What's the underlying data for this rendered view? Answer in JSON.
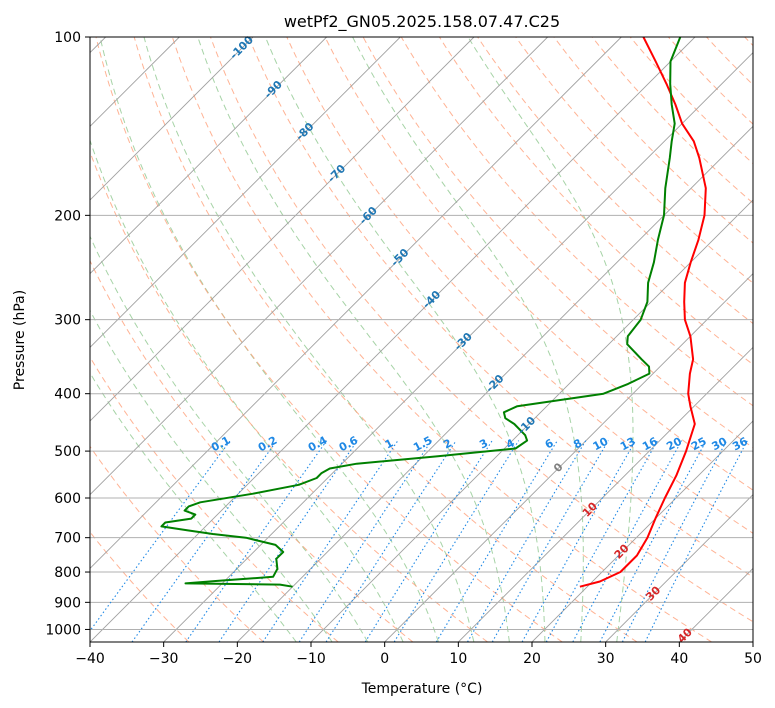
{
  "chart_data": {
    "type": "line",
    "title": "wetPf2_GN05.2025.158.07.47.C25",
    "xlabel": "Temperature (°C)",
    "ylabel": "Pressure (hPa)",
    "xlim": [
      -40,
      50
    ],
    "ylim": [
      1050,
      100
    ],
    "y_scale": "log",
    "x_ticks": [
      -40,
      -30,
      -20,
      -10,
      0,
      10,
      20,
      30,
      40,
      50
    ],
    "x_tick_labels": [
      "−40",
      "−30",
      "−20",
      "−10",
      "0",
      "10",
      "20",
      "30",
      "40",
      "50"
    ],
    "y_ticks": [
      100,
      200,
      300,
      400,
      500,
      600,
      700,
      800,
      900,
      1000
    ],
    "y_tick_labels": [
      "100",
      "200",
      "300",
      "400",
      "500",
      "600",
      "700",
      "800",
      "900",
      "1000"
    ],
    "grid": true,
    "series": [
      {
        "color": "#ff0000",
        "pressure": [
          847,
          830,
          800,
          750,
          700,
          650,
          600,
          550,
          500,
          450,
          420,
          400,
          370,
          350,
          320,
          300,
          280,
          260,
          240,
          220,
          200,
          180,
          160,
          150,
          140,
          130,
          120,
          110,
          100
        ],
        "temperature": [
          19,
          21,
          22.5,
          22.5,
          21.5,
          20,
          18.5,
          17,
          15,
          12.5,
          9.5,
          7.5,
          5,
          3.5,
          0,
          -3,
          -5.5,
          -8,
          -10,
          -12,
          -14.5,
          -18,
          -23,
          -26,
          -30,
          -33.5,
          -37.5,
          -42,
          -47
        ]
      },
      {
        "color": "#008000",
        "pressure": [
          847,
          840,
          836,
          828,
          815,
          790,
          760,
          740,
          720,
          700,
          690,
          680,
          670,
          660,
          650,
          640,
          630,
          620,
          610,
          590,
          570,
          555,
          545,
          535,
          525,
          510,
          495,
          480,
          470,
          450,
          440,
          430,
          420,
          410,
          400,
          385,
          370,
          360,
          350,
          330,
          320,
          300,
          280,
          260,
          240,
          220,
          200,
          180,
          160,
          150,
          140,
          130,
          120,
          110,
          100
        ],
        "temperature": [
          -20,
          -22,
          -35,
          -31,
          -24,
          -24.5,
          -26,
          -26,
          -28,
          -33,
          -38,
          -42,
          -46,
          -46,
          -43,
          -43,
          -45,
          -45,
          -44,
          -38,
          -33,
          -31.5,
          -31.5,
          -31,
          -28,
          -18,
          -8.5,
          -8,
          -9,
          -12,
          -14,
          -15,
          -14,
          -9,
          -4,
          -2,
          -0.5,
          -1.5,
          -3.5,
          -7.5,
          -8.5,
          -9,
          -10.5,
          -13,
          -15,
          -17.5,
          -20,
          -23.5,
          -27,
          -29,
          -31,
          -34,
          -37,
          -40,
          -42
        ]
      }
    ],
    "dry_adiabats_C": [
      -30,
      -20,
      -10,
      0,
      10,
      20,
      30,
      40,
      50,
      60,
      70,
      80,
      90,
      100,
      110,
      120,
      130,
      140,
      150,
      160,
      170,
      180,
      190,
      200,
      210,
      220,
      230,
      240,
      250
    ],
    "moist_adiabats_C": [
      -15,
      -10,
      -5,
      0,
      5,
      10,
      15,
      20,
      25,
      30
    ],
    "mixing_ratio_lines": [
      0.1,
      0.2,
      0.4,
      0.6,
      1,
      1.5,
      2,
      3,
      4,
      6,
      8,
      10,
      13,
      16,
      20,
      25,
      30,
      36
    ],
    "mixing_ratio_labels": [
      "0.1",
      "0.2",
      "0.4",
      "0.6",
      "1",
      "1.5",
      "2",
      "3",
      "4",
      "6",
      "8",
      "10",
      "13",
      "16",
      "20",
      "25",
      "30",
      "36"
    ],
    "isotherm_labels": [
      {
        "t": -100,
        "text": "-100"
      },
      {
        "t": -90,
        "text": "-90"
      },
      {
        "t": -80,
        "text": "-80"
      },
      {
        "t": -70,
        "text": "-70"
      },
      {
        "t": -60,
        "text": "-60"
      },
      {
        "t": -50,
        "text": "-50"
      },
      {
        "t": -40,
        "text": "-40"
      },
      {
        "t": -30,
        "text": "-30"
      },
      {
        "t": -20,
        "text": "-20"
      },
      {
        "t": -10,
        "text": "-10"
      },
      {
        "t": 0,
        "text": "0"
      },
      {
        "t": 10,
        "text": "10"
      },
      {
        "t": 20,
        "text": "20"
      },
      {
        "t": 30,
        "text": "30"
      },
      {
        "t": 40,
        "text": "40"
      }
    ],
    "colors": {
      "isotherm_cold_label": "#1f77b4",
      "isotherm_zero_label": "#808080",
      "isotherm_warm_label": "#d62728",
      "mixing_ratio": "#1e88e5",
      "dry_adiabat": "#ffa07a",
      "moist_adiabat": "#90c890",
      "skewed_isotherm": "#a0a0a0",
      "grid": "#b0b0b0"
    }
  }
}
